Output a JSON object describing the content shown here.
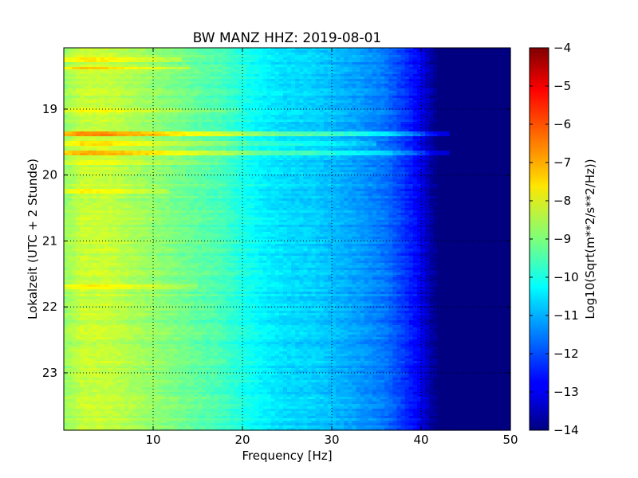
{
  "chart_data": {
    "type": "heatmap",
    "title": "BW MANZ HHZ: 2019-08-01",
    "xlabel": "Frequency [Hz]",
    "ylabel": "Lokalzeit (UTC + 2 Stunde)",
    "xlim": [
      0,
      50
    ],
    "ylim": [
      18.07,
      23.87
    ],
    "y_inverted": true,
    "x_ticks": [
      10,
      20,
      30,
      40,
      50
    ],
    "x_tick_labels": [
      "10",
      "20",
      "30",
      "40",
      "50"
    ],
    "y_ticks": [
      19,
      20,
      21,
      22,
      23
    ],
    "y_tick_labels": [
      "19",
      "20",
      "21",
      "22",
      "23"
    ],
    "grid": true,
    "colormap": "jet",
    "colorbar": {
      "label": "Log10(Sqrt(m**2/s**2/Hz))",
      "range": [
        -14,
        -4
      ],
      "ticks": [
        -4,
        -5,
        -6,
        -7,
        -8,
        -9,
        -10,
        -11,
        -12,
        -13,
        -14
      ],
      "tick_labels": [
        "−4",
        "−5",
        "−6",
        "−7",
        "−8",
        "−9",
        "−10",
        "−11",
        "−12",
        "−13",
        "−14"
      ]
    },
    "spectrum_profile": {
      "frequency_hz": [
        0,
        2,
        5,
        8,
        10,
        14,
        18,
        20,
        22,
        25,
        28,
        30,
        33,
        36,
        38,
        40,
        41,
        42,
        45,
        50
      ],
      "log10_amplitude": [
        -8.8,
        -8.3,
        -8.3,
        -8.6,
        -8.8,
        -9.2,
        -9.6,
        -10.0,
        -10.3,
        -10.6,
        -10.7,
        -10.9,
        -11.2,
        -11.6,
        -12.2,
        -12.9,
        -13.6,
        -14.0,
        -14.0,
        -14.0
      ]
    },
    "events": [
      {
        "time": 18.25,
        "log10_amplitude_offset": 0.7,
        "max_frequency_hz": 13
      },
      {
        "time": 18.38,
        "log10_amplitude_offset": 1.0,
        "max_frequency_hz": 14
      },
      {
        "time": 19.0,
        "log10_amplitude_offset": 0.4,
        "max_frequency_hz": 20
      },
      {
        "time": 19.37,
        "log10_amplitude_offset": 1.6,
        "max_frequency_hz": 43
      },
      {
        "time": 19.52,
        "log10_amplitude_offset": 0.9,
        "max_frequency_hz": 35
      },
      {
        "time": 19.67,
        "log10_amplitude_offset": 1.4,
        "max_frequency_hz": 43
      },
      {
        "time": 19.8,
        "log10_amplitude_offset": 0.5,
        "max_frequency_hz": 18
      },
      {
        "time": 20.25,
        "log10_amplitude_offset": 0.8,
        "max_frequency_hz": 12
      },
      {
        "time": 21.7,
        "log10_amplitude_offset": 0.6,
        "max_frequency_hz": 15
      }
    ]
  }
}
